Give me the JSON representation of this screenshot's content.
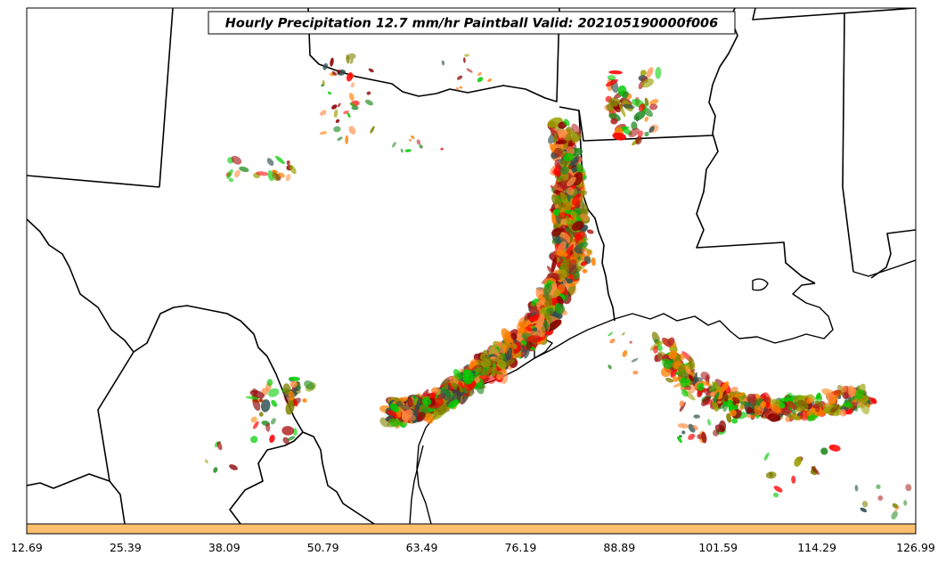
{
  "map": {
    "title": "Hourly Precipitation 12.7 mm/hr Paintball Valid: 202105190000f006",
    "colorbar": {
      "color": "#fdbf6f",
      "tick_labels": [
        "12.69",
        "25.39",
        "38.09",
        "50.79",
        "63.49",
        "76.19",
        "88.89",
        "101.59",
        "114.29",
        "126.99"
      ]
    },
    "member_colors": [
      "#ff0000",
      "#00cc00",
      "#ff7f00",
      "#808000",
      "#8b0000",
      "#228b22",
      "#b22222",
      "#2f4f4f",
      "#ff8c42",
      "#9aa000"
    ]
  }
}
